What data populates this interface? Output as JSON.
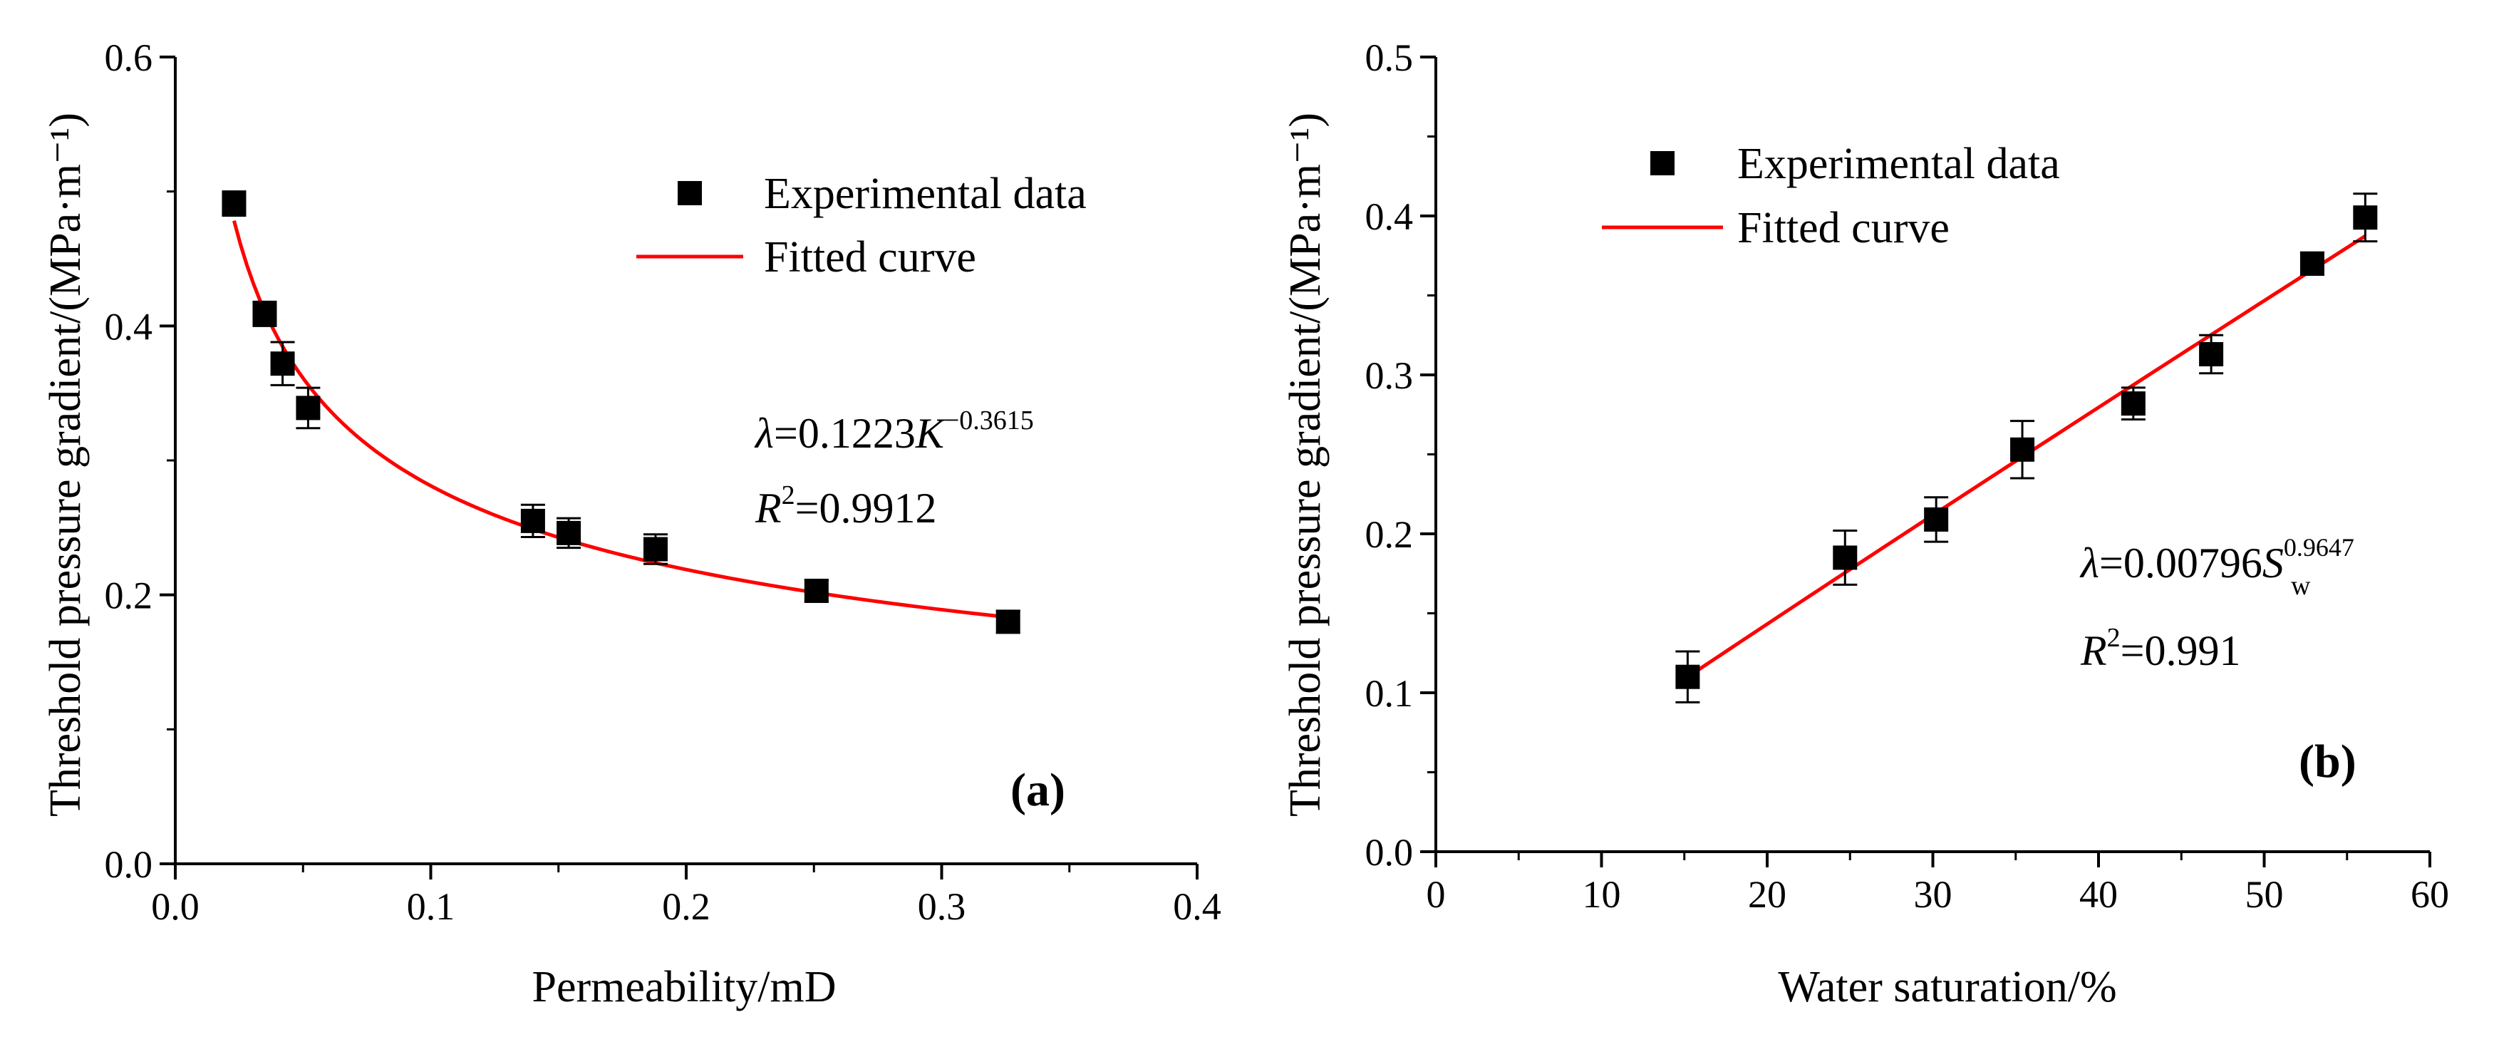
{
  "chart_data": [
    {
      "type": "scatter",
      "panel_label": "a",
      "xlabel": "Permeability/mD",
      "ylabel": "Threshold pressure gradient/(MPa·m⁻¹)",
      "xlim": [
        0.0,
        0.4
      ],
      "ylim": [
        0.0,
        0.6
      ],
      "xticks": [
        0.0,
        0.1,
        0.2,
        0.3,
        0.4
      ],
      "yticks": [
        0.0,
        0.2,
        0.4,
        0.6
      ],
      "xtick_labels": [
        "0.0",
        "0.1",
        "0.2",
        "0.3",
        "0.4"
      ],
      "ytick_labels": [
        "0.0",
        "0.2",
        "0.4",
        "0.6"
      ],
      "legend_position": "top-right",
      "series": [
        {
          "name": "Experimental data",
          "kind": "points",
          "color": "#000000",
          "x": [
            0.023,
            0.035,
            0.042,
            0.052,
            0.14,
            0.154,
            0.188,
            0.251,
            0.326
          ],
          "y": [
            0.491,
            0.409,
            0.372,
            0.339,
            0.255,
            0.246,
            0.234,
            0.203,
            0.18
          ],
          "error": [
            0.009,
            0.009,
            0.016,
            0.015,
            0.012,
            0.011,
            0.011,
            0.008,
            0.008
          ]
        },
        {
          "name": "Fitted curve",
          "kind": "line",
          "color": "#ff0000",
          "model": "power",
          "coef": 0.1223,
          "exponent": -0.3615,
          "x_range": [
            0.023,
            0.326
          ]
        }
      ],
      "equation": {
        "prefix": "=0.1223",
        "variable": "K",
        "exponent": "−0.3615",
        "r2_value": "=0.9912"
      }
    },
    {
      "type": "scatter",
      "panel_label": "b",
      "xlabel": "Water saturation/%",
      "ylabel": "Threshold pressure gradient/(MPa·m⁻¹)",
      "xlim": [
        0,
        60
      ],
      "ylim": [
        0.0,
        0.5
      ],
      "xticks": [
        0,
        10,
        20,
        30,
        40,
        50,
        60
      ],
      "yticks": [
        0.0,
        0.1,
        0.2,
        0.3,
        0.4,
        0.5
      ],
      "xtick_labels": [
        "0",
        "10",
        "20",
        "30",
        "40",
        "50",
        "60"
      ],
      "ytick_labels": [
        "0.0",
        "0.1",
        "0.2",
        "0.3",
        "0.4",
        "0.5"
      ],
      "legend_position": "top-left",
      "series": [
        {
          "name": "Experimental data",
          "kind": "points",
          "color": "#000000",
          "x": [
            15.2,
            24.7,
            30.2,
            35.4,
            42.1,
            46.8,
            52.9,
            56.1
          ],
          "y": [
            0.11,
            0.185,
            0.209,
            0.253,
            0.282,
            0.313,
            0.37,
            0.399
          ],
          "error": [
            0.016,
            0.017,
            0.014,
            0.018,
            0.01,
            0.012,
            0.007,
            0.015
          ]
        },
        {
          "name": "Fitted curve",
          "kind": "line",
          "color": "#ff0000",
          "model": "power",
          "coef": 0.00796,
          "exponent": 0.9647,
          "x_range": [
            15.2,
            56.1
          ]
        }
      ],
      "equation": {
        "prefix": "=0.00796",
        "variable": "S",
        "subscript": "w",
        "exponent": "0.9647",
        "r2_value": "=0.991"
      }
    }
  ]
}
